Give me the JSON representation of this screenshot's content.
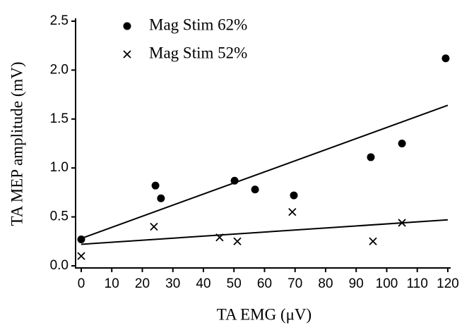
{
  "chart_data": {
    "type": "scatter",
    "x_label": "TA EMG (μV)",
    "y_label": "TA MEP amplitude (mV)",
    "xlim": [
      0,
      120
    ],
    "ylim": [
      0,
      2.5
    ],
    "xticks": [
      0,
      10,
      20,
      30,
      40,
      50,
      60,
      70,
      80,
      90,
      100,
      110,
      120
    ],
    "yticks": [
      {
        "value": 0,
        "label": "0.0"
      },
      0.5,
      {
        "value": 1,
        "label": "1.0"
      },
      1.5,
      {
        "value": 2,
        "label": "2.0"
      },
      2.5
    ],
    "legend": "upper left",
    "series": [
      {
        "name": "Mag Stim 62%",
        "marker": "circle",
        "color": "#000000",
        "x": [
          0,
          24.3,
          26.1,
          50.2,
          56.9,
          69.6,
          94.8,
          105,
          119.3
        ],
        "values": [
          0.27,
          0.82,
          0.69,
          0.87,
          0.78,
          0.72,
          1.11,
          1.25,
          2.12
        ],
        "fit": {
          "x": [
            0,
            120
          ],
          "values": [
            0.28,
            1.64
          ]
        }
      },
      {
        "name": "Mag Stim 52%",
        "marker": "cross",
        "color": "#000000",
        "x": [
          0,
          23.8,
          45.3,
          51.1,
          69.1,
          95.5,
          105
        ],
        "values": [
          0.1,
          0.4,
          0.29,
          0.25,
          0.55,
          0.25,
          0.44
        ],
        "fit": {
          "x": [
            0,
            120
          ],
          "values": [
            0.22,
            0.47
          ]
        }
      }
    ]
  }
}
